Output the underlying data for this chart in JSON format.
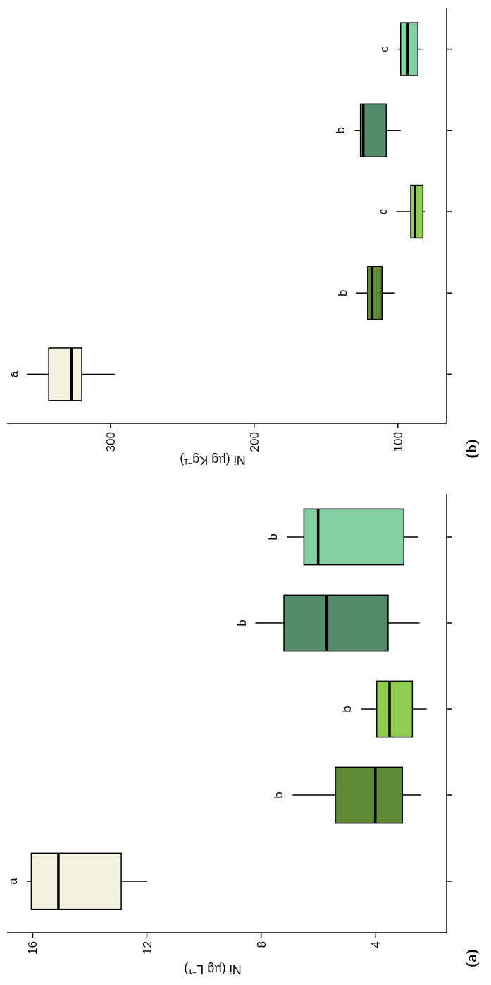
{
  "chart_data": [
    {
      "type": "box",
      "orientation": "horizontal",
      "xlabel": "Ni (µg L⁻¹)",
      "categories": [
        null,
        null,
        null,
        null,
        null
      ],
      "colors": [
        "#84d0a0",
        "#558b6a",
        "#8fcc4f",
        "#5e8a33",
        "#f3f2dc"
      ],
      "boxes": [
        {
          "low": 2.5,
          "q1": 3.0,
          "median": 6.0,
          "q3": 6.5,
          "high": 7.1
        },
        {
          "low": 2.45,
          "q1": 3.55,
          "median": 5.7,
          "q3": 7.2,
          "high": 8.2
        },
        {
          "low": 2.2,
          "q1": 2.7,
          "median": 3.5,
          "q3": 3.95,
          "high": 4.5
        },
        {
          "low": 2.4,
          "q1": 3.05,
          "median": 4.0,
          "q3": 5.4,
          "high": 6.9
        },
        {
          "low": 12.0,
          "q1": 12.9,
          "median": 15.1,
          "q3": 16.05,
          "high": 16.2
        }
      ],
      "annotations": [
        "b",
        "b",
        "b",
        "b",
        "a",
        "(a)"
      ],
      "xlim": [
        16.9,
        1.5
      ],
      "xticks": [
        16,
        12,
        8,
        4
      ]
    },
    {
      "type": "box",
      "orientation": "horizontal",
      "xlabel": "Ni (µg Kg⁻¹)",
      "categories": [
        null,
        null,
        null,
        null,
        null
      ],
      "colors": [
        "#84d0a0",
        "#558b6a",
        "#8fcc4f",
        "#5e8a33",
        "#f3f2dc"
      ],
      "boxes": [
        {
          "low": 82,
          "q1": 86,
          "median": 93,
          "q3": 98,
          "high": 100
        },
        {
          "low": 98,
          "q1": 108,
          "median": 124,
          "q3": 126,
          "high": 130
        },
        {
          "low": 81,
          "q1": 82.5,
          "median": 88,
          "q3": 91,
          "high": 101
        },
        {
          "low": 102,
          "q1": 111,
          "median": 118,
          "q3": 121,
          "high": 129
        },
        {
          "low": 297,
          "q1": 320,
          "median": 327,
          "q3": 343,
          "high": 358
        }
      ],
      "annotations": [
        "c",
        "b",
        "c",
        "b",
        "a",
        "(b)"
      ],
      "xlim": [
        372,
        66
      ],
      "xticks": [
        300,
        200,
        100
      ]
    }
  ]
}
